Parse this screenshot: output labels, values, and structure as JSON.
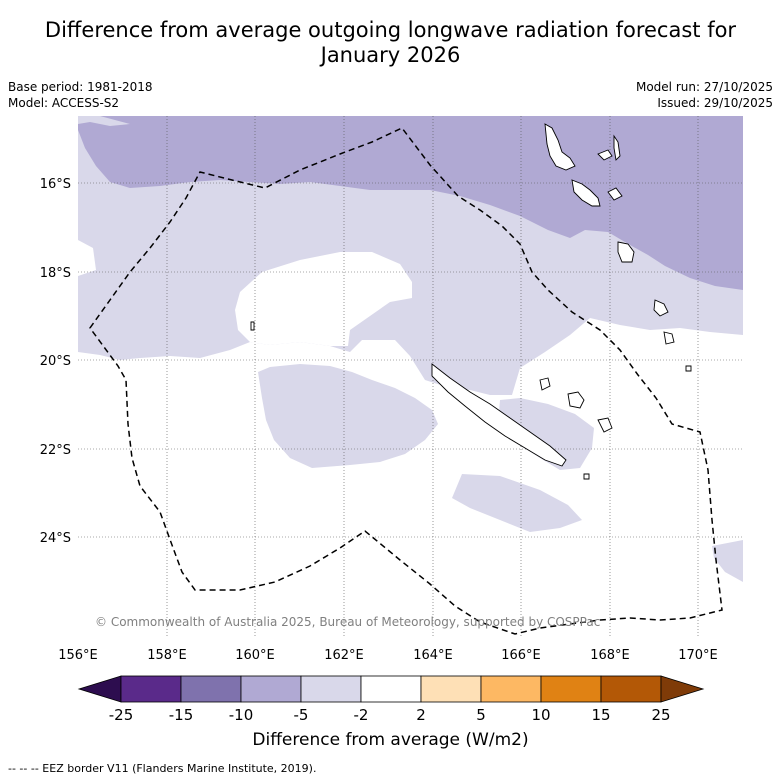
{
  "title": {
    "line1": "Difference from average outgoing longwave radiation forecast for",
    "line2": "January 2026"
  },
  "meta": {
    "base_period": "Base period: 1981-2018",
    "model": "Model: ACCESS-S2",
    "model_run": "Model run: 27/10/2025",
    "issued": "Issued: 29/10/2025"
  },
  "map": {
    "copyright": "© Commonwealth of Australia 2025, Bureau of Meteorology, supported by COSPPac",
    "lon_ticks": [
      "156°E",
      "158°E",
      "160°E",
      "162°E",
      "164°E",
      "166°E",
      "168°E",
      "170°E"
    ],
    "lat_ticks": [
      "16°S",
      "18°S",
      "20°S",
      "22°S",
      "24°S"
    ],
    "extent": {
      "lon_min": 156,
      "lon_max": 171,
      "lat_north": -14.5,
      "lat_south": -26.5
    }
  },
  "colorbar": {
    "title": "Difference from average (W/m2)",
    "labels": [
      "-25",
      "-15",
      "-10",
      "-5",
      "-2",
      "2",
      "5",
      "10",
      "15",
      "25"
    ],
    "colors": {
      "extend_low": "#2d0d4f",
      "bins": [
        "#5a2a8a",
        "#7f72ad",
        "#b0a9d3",
        "#d9d8ea",
        "#ffffff",
        "#fee0b6",
        "#fdb863",
        "#e08214",
        "#b35806"
      ],
      "extend_high": "#7f3b08"
    }
  },
  "footer": "--  --  -- EEZ border V11 (Flanders Marine Institute, 2019)."
}
